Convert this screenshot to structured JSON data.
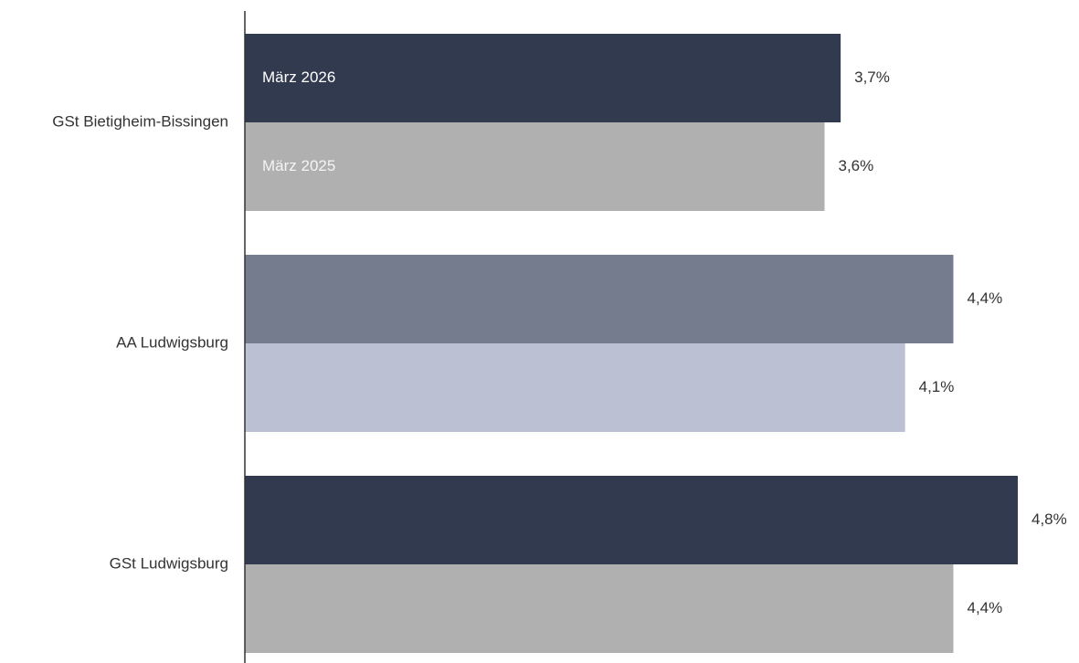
{
  "chart_data": {
    "type": "hbar",
    "categories": [
      "GSt Bietigheim-Bissingen",
      "AA Ludwigsburg",
      "GSt Ludwigsburg"
    ],
    "series": [
      {
        "name": "März 2026",
        "colors": [
          "#323a4f",
          "#747c8e",
          "#323a4f"
        ],
        "values": [
          3.7,
          4.4,
          4.8
        ],
        "value_labels": [
          "3,7%",
          "4,4%",
          "4,8%"
        ]
      },
      {
        "name": "März 2025",
        "colors": [
          "#b0b0b0",
          "#bbc1d3",
          "#b0b0b0"
        ],
        "values": [
          3.6,
          4.1,
          4.4
        ],
        "value_labels": [
          "3,6%",
          "4,1%",
          "4,4%"
        ]
      }
    ]
  }
}
